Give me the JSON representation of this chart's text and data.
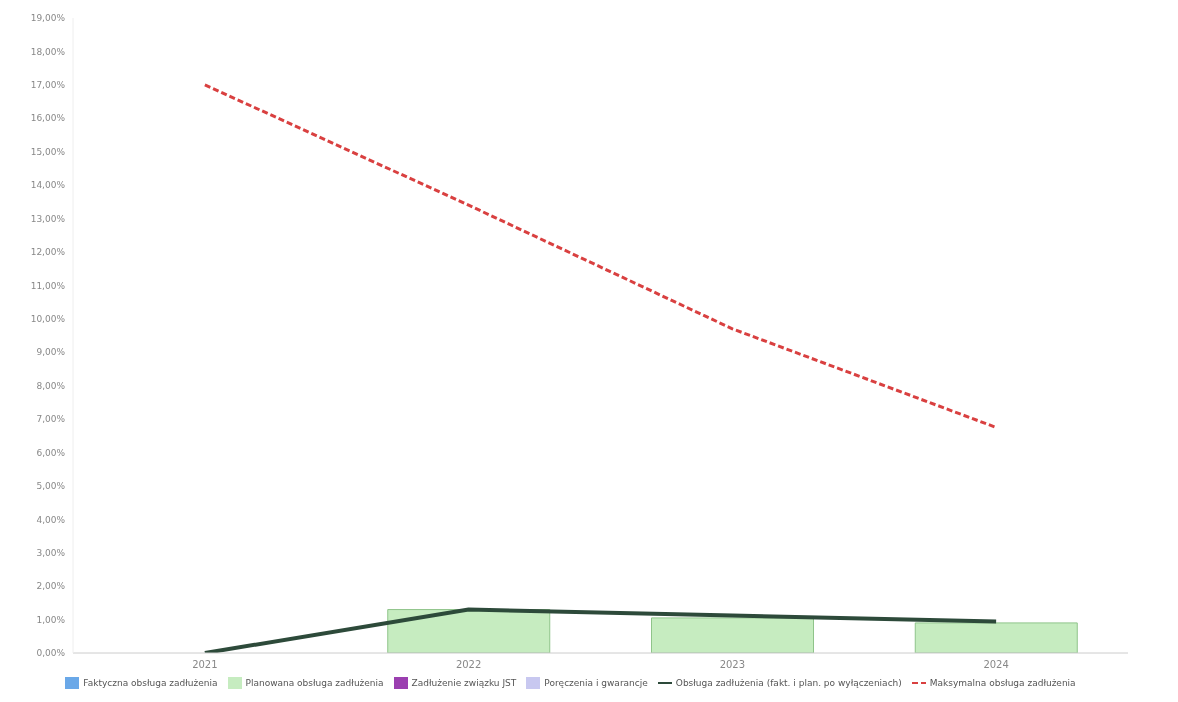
{
  "chart_data": {
    "type": "bar",
    "categories": [
      "2021",
      "2022",
      "2023",
      "2024"
    ],
    "series": [
      {
        "name": "Faktyczna obsługa zadłużenia",
        "color": "#6aa8e8",
        "values": [
          null,
          null,
          null,
          null
        ]
      },
      {
        "name": "Planowana obsługa zadłużenia",
        "color": "#c6ecc0",
        "values": [
          null,
          1.3,
          1.05,
          0.9
        ]
      },
      {
        "name": "Zadłużenie związku JST",
        "color": "#9b3fb0",
        "values": [
          null,
          null,
          null,
          null
        ]
      },
      {
        "name": "Poręczenia i gwarancje",
        "color": "#c8c8f0",
        "values": [
          null,
          null,
          null,
          null
        ]
      },
      {
        "name": "Obsługa zadłużenia (fakt. i plan. po wyłączeniach)",
        "type": "line",
        "color": "#2d4a3a",
        "line_style": "solid",
        "values": [
          0,
          1.3,
          1.12,
          0.94
        ]
      },
      {
        "name": "Maksymalna obsługa zadłużenia",
        "type": "line",
        "color": "#d94040",
        "line_style": "dashed",
        "values": [
          17.0,
          13.4,
          9.7,
          6.75
        ]
      }
    ],
    "ylim": [
      0,
      19
    ],
    "yticks": [
      {
        "value": 0,
        "label": "0,00%"
      },
      {
        "value": 1,
        "label": "1,00%"
      },
      {
        "value": 2,
        "label": "2,00%"
      },
      {
        "value": 3,
        "label": "3,00%"
      },
      {
        "value": 4,
        "label": "4,00%"
      },
      {
        "value": 5,
        "label": "5,00%"
      },
      {
        "value": 6,
        "label": "6,00%"
      },
      {
        "value": 7,
        "label": "7,00%"
      },
      {
        "value": 8,
        "label": "8,00%"
      },
      {
        "value": 9,
        "label": "9,00%"
      },
      {
        "value": 10,
        "label": "10,00%"
      },
      {
        "value": 11,
        "label": "11,00%"
      },
      {
        "value": 12,
        "label": "12,00%"
      },
      {
        "value": 13,
        "label": "13,00%"
      },
      {
        "value": 14,
        "label": "14,00%"
      },
      {
        "value": 15,
        "label": "15,00%"
      },
      {
        "value": 16,
        "label": "16,00%"
      },
      {
        "value": 17,
        "label": "17,00%"
      },
      {
        "value": 18,
        "label": "18,00%"
      },
      {
        "value": 19,
        "label": "19,00%"
      }
    ],
    "legend": "bottom",
    "marker": "none"
  }
}
